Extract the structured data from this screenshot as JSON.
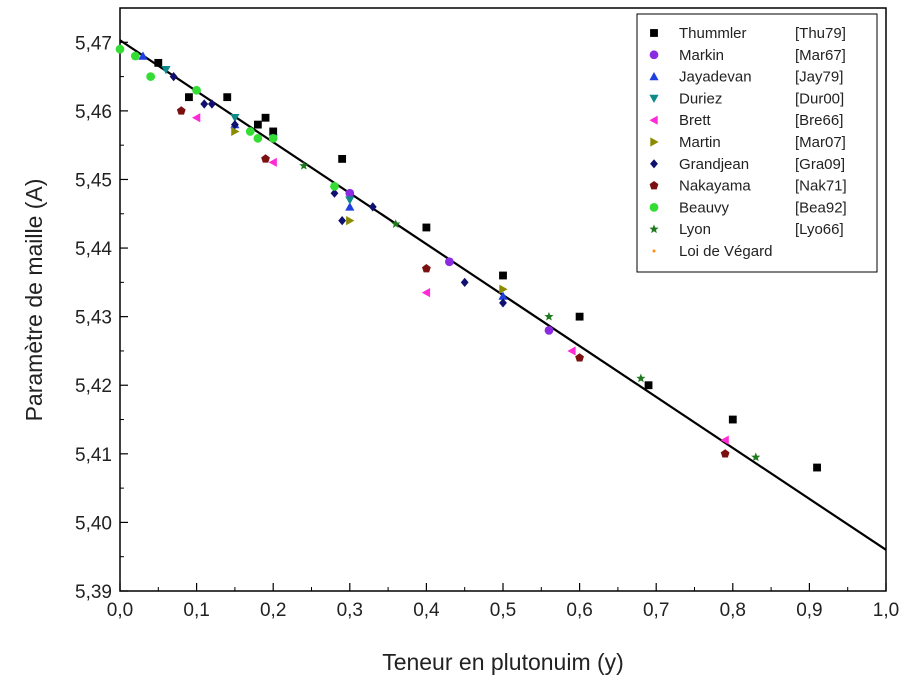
{
  "chart_data": {
    "type": "scatter",
    "xlabel": "Teneur en plutonuim (y)",
    "ylabel": "Paramètre de maille (A)",
    "xlim": [
      0.0,
      1.0
    ],
    "ylim": [
      5.39,
      5.475
    ],
    "x_ticks": [
      0.0,
      0.1,
      0.2,
      0.3,
      0.4,
      0.5,
      0.6,
      0.7,
      0.8,
      0.9,
      1.0
    ],
    "y_ticks": [
      5.39,
      5.4,
      5.41,
      5.42,
      5.43,
      5.44,
      5.45,
      5.46,
      5.47
    ],
    "x_tick_labels": [
      "0,0",
      "0,1",
      "0,2",
      "0,3",
      "0,4",
      "0,5",
      "0,6",
      "0,7",
      "0,8",
      "0,9",
      "1,0"
    ],
    "y_tick_labels": [
      "5,39",
      "5,40",
      "5,41",
      "5,42",
      "5,43",
      "5,44",
      "5,45",
      "5,46",
      "5,47"
    ],
    "legend_position": "top-right",
    "series": [
      {
        "name": "Thummler",
        "ref": "[Thu79]",
        "marker": "square",
        "color": "#000000",
        "points": [
          [
            0.05,
            5.467
          ],
          [
            0.09,
            5.462
          ],
          [
            0.14,
            5.462
          ],
          [
            0.18,
            5.458
          ],
          [
            0.19,
            5.459
          ],
          [
            0.2,
            5.457
          ],
          [
            0.29,
            5.453
          ],
          [
            0.4,
            5.443
          ],
          [
            0.5,
            5.436
          ],
          [
            0.6,
            5.43
          ],
          [
            0.69,
            5.42
          ],
          [
            0.8,
            5.415
          ],
          [
            0.91,
            5.408
          ]
        ]
      },
      {
        "name": "Markin",
        "ref": "[Mar67]",
        "marker": "circle",
        "color": "#8a2be2",
        "points": [
          [
            0.3,
            5.448
          ],
          [
            0.43,
            5.438
          ],
          [
            0.56,
            5.428
          ]
        ]
      },
      {
        "name": "Jayadevan",
        "ref": "[Jay79]",
        "marker": "triangle-up",
        "color": "#1f3fdf",
        "points": [
          [
            0.03,
            5.468
          ],
          [
            0.15,
            5.458
          ],
          [
            0.3,
            5.446
          ],
          [
            0.5,
            5.433
          ]
        ]
      },
      {
        "name": "Duriez",
        "ref": "[Dur00]",
        "marker": "triangle-down",
        "color": "#0f8a8a",
        "points": [
          [
            0.06,
            5.466
          ],
          [
            0.15,
            5.459
          ],
          [
            0.2,
            5.456
          ],
          [
            0.3,
            5.447
          ]
        ]
      },
      {
        "name": "Brett",
        "ref": "[Bre66]",
        "marker": "triangle-left",
        "color": "#ff2bd6",
        "points": [
          [
            0.1,
            5.459
          ],
          [
            0.2,
            5.4525
          ],
          [
            0.4,
            5.4335
          ],
          [
            0.59,
            5.425
          ],
          [
            0.79,
            5.412
          ]
        ]
      },
      {
        "name": "Martin",
        "ref": "[Mar07]",
        "marker": "triangle-right",
        "color": "#8b8b00",
        "points": [
          [
            0.15,
            5.457
          ],
          [
            0.3,
            5.444
          ],
          [
            0.5,
            5.434
          ]
        ]
      },
      {
        "name": "Grandjean",
        "ref": "[Gra09]",
        "marker": "diamond",
        "color": "#10106e",
        "points": [
          [
            0.07,
            5.465
          ],
          [
            0.11,
            5.461
          ],
          [
            0.12,
            5.461
          ],
          [
            0.15,
            5.458
          ],
          [
            0.28,
            5.448
          ],
          [
            0.29,
            5.444
          ],
          [
            0.33,
            5.446
          ],
          [
            0.45,
            5.435
          ],
          [
            0.5,
            5.432
          ]
        ]
      },
      {
        "name": "Nakayama",
        "ref": "[Nak71]",
        "marker": "pentagon",
        "color": "#7a1010",
        "points": [
          [
            0.08,
            5.46
          ],
          [
            0.19,
            5.453
          ],
          [
            0.4,
            5.437
          ],
          [
            0.6,
            5.424
          ],
          [
            0.79,
            5.41
          ]
        ]
      },
      {
        "name": "Beauvy",
        "ref": "[Bea92]",
        "marker": "circle",
        "color": "#33dd33",
        "points": [
          [
            0.0,
            5.469
          ],
          [
            0.02,
            5.468
          ],
          [
            0.04,
            5.465
          ],
          [
            0.1,
            5.463
          ],
          [
            0.17,
            5.457
          ],
          [
            0.18,
            5.456
          ],
          [
            0.2,
            5.456
          ],
          [
            0.28,
            5.449
          ]
        ]
      },
      {
        "name": "Lyon",
        "ref": "[Lyo66]",
        "marker": "star",
        "color": "#1f7a1f",
        "points": [
          [
            0.24,
            5.452
          ],
          [
            0.36,
            5.4435
          ],
          [
            0.56,
            5.43
          ],
          [
            0.68,
            5.421
          ],
          [
            0.83,
            5.4095
          ]
        ]
      },
      {
        "name": "Loi de Végard",
        "ref": "",
        "marker": "line",
        "color": "#000000",
        "points": [
          [
            0.0,
            5.4703
          ],
          [
            1.0,
            5.396
          ]
        ]
      }
    ]
  }
}
